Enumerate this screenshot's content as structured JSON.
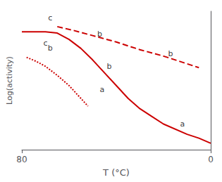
{
  "chart_data": {
    "type": "line",
    "xlabel": "T (°C)",
    "ylabel": "Log(activity)",
    "xlim": [
      80,
      0
    ],
    "xticks": [
      80,
      0
    ],
    "ylim": [
      0.0,
      1.08
    ],
    "tick_labels": "x",
    "grid": false,
    "series": [
      {
        "color": "#cc0000",
        "line_style": "solid",
        "x": [
          80,
          75,
          70,
          65,
          60,
          55,
          50,
          45,
          40,
          35,
          30,
          25,
          20,
          10,
          5,
          0
        ],
        "values": [
          0.92,
          0.92,
          0.92,
          0.91,
          0.86,
          0.79,
          0.7,
          0.6,
          0.5,
          0.4,
          0.32,
          0.26,
          0.2,
          0.12,
          0.09,
          0.05
        ]
      },
      {
        "color": "#cc0000",
        "line_style": "dashed",
        "x": [
          65,
          58,
          50,
          40,
          30,
          20,
          10,
          5
        ],
        "values": [
          0.96,
          0.93,
          0.89,
          0.84,
          0.78,
          0.73,
          0.67,
          0.64
        ]
      },
      {
        "color": "#cc0000",
        "line_style": "dotted",
        "x": [
          78,
          74,
          70,
          65,
          60,
          55,
          52
        ],
        "values": [
          0.72,
          0.69,
          0.65,
          0.58,
          0.5,
          0.4,
          0.34
        ]
      }
    ],
    "annotations": [
      {
        "text": "c",
        "x": 70,
        "y": 0.8
      },
      {
        "text": "b",
        "x": 43,
        "y": 0.62
      },
      {
        "text": "a",
        "x": 12,
        "y": 0.17
      },
      {
        "text": "c",
        "x": 68,
        "y": 1.0
      },
      {
        "text": "b",
        "x": 47,
        "y": 0.87
      },
      {
        "text": "b",
        "x": 17,
        "y": 0.72
      },
      {
        "text": "b",
        "x": 68,
        "y": 0.76
      },
      {
        "text": "a",
        "x": 46,
        "y": 0.44
      }
    ]
  }
}
